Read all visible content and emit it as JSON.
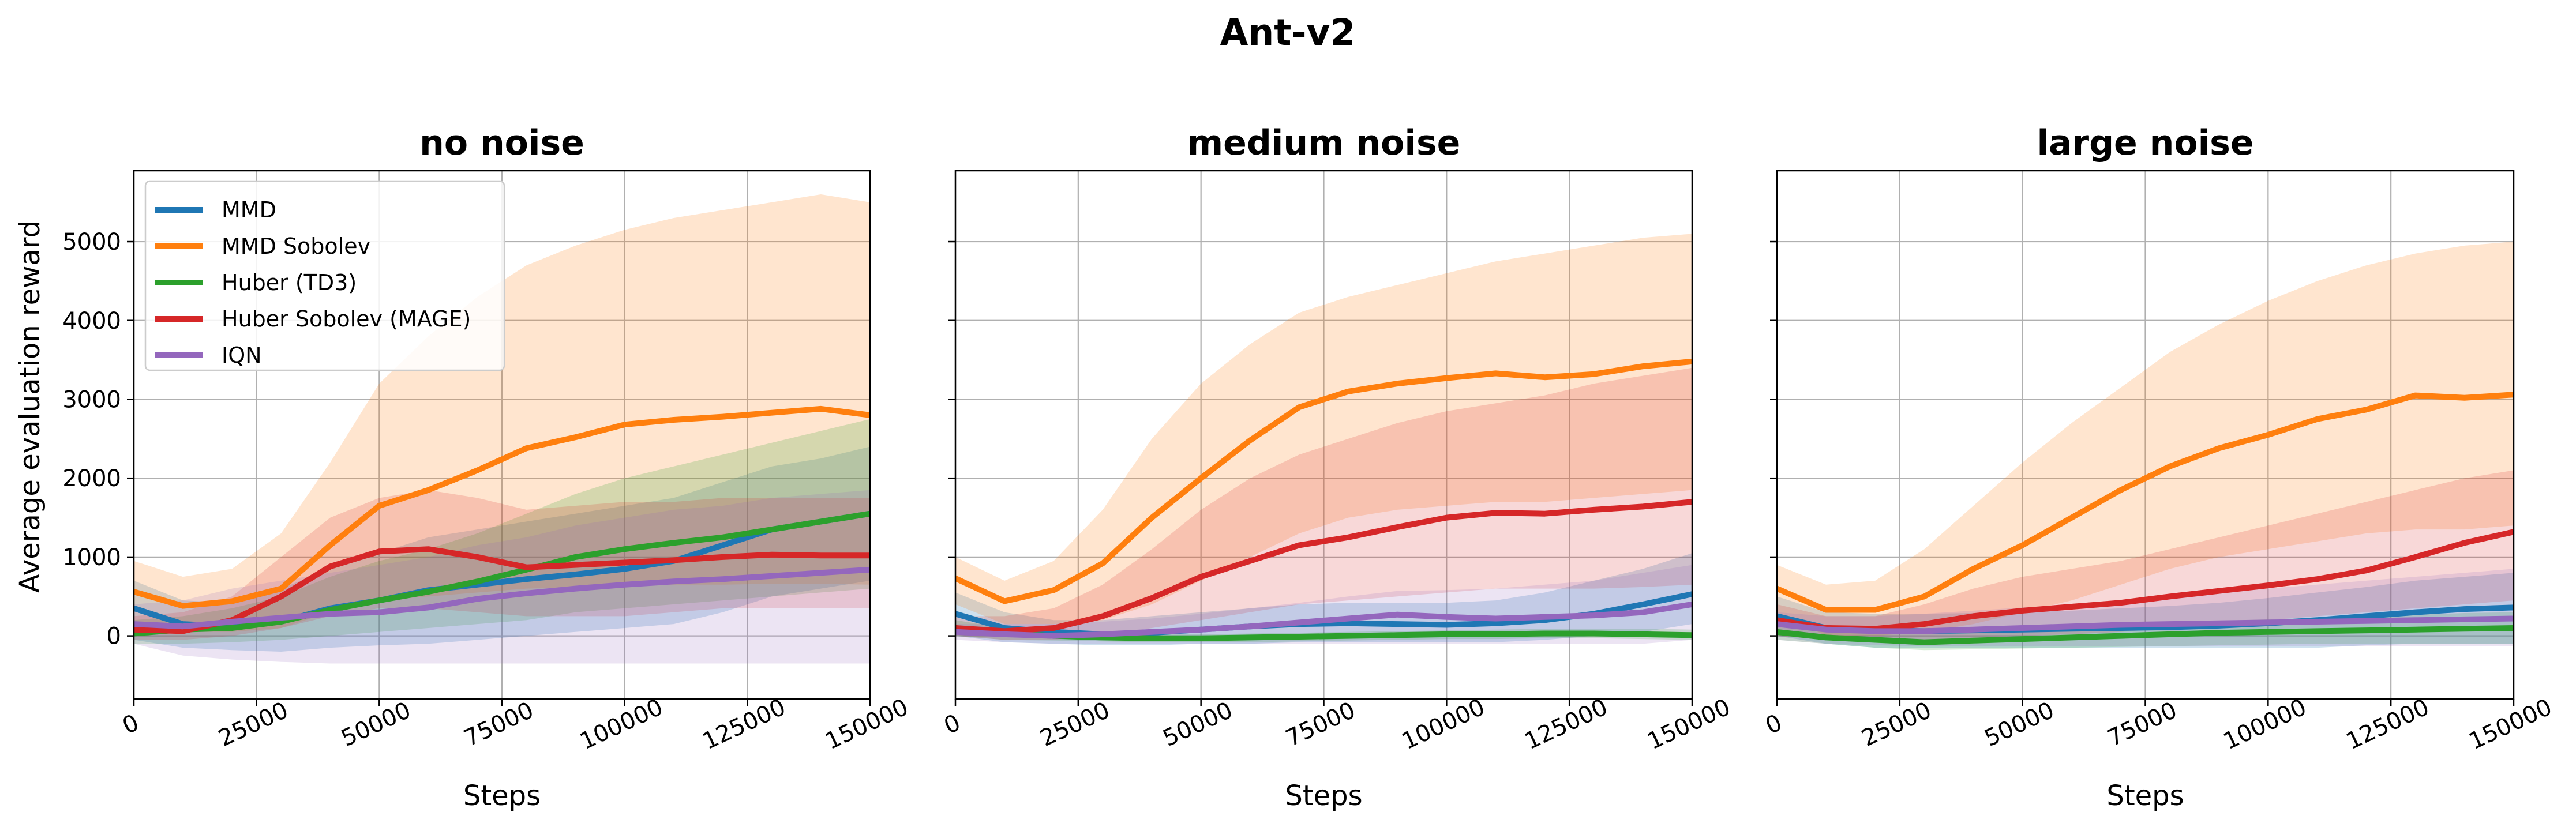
{
  "figure": {
    "suptitle": "Ant-v2",
    "ylabel": "Average evaluation reward",
    "xlabel": "Steps"
  },
  "colors": {
    "MMD": "#1f77b4",
    "MMD Sobolev": "#ff7f0e",
    "Huber (TD3)": "#2ca02c",
    "Huber Sobolev (MAGE)": "#d62728",
    "IQN": "#9467bd",
    "grid": "#b0b0b0"
  },
  "legend": {
    "placement": "upper-left of first panel",
    "entries": [
      "MMD",
      "MMD Sobolev",
      "Huber (TD3)",
      "Huber Sobolev (MAGE)",
      "IQN"
    ]
  },
  "chart_data": [
    {
      "type": "line",
      "title": "no noise",
      "xlabel": "Steps",
      "ylabel": "Average evaluation reward",
      "xlim": [
        0,
        150000
      ],
      "ylim": [
        -800,
        5900
      ],
      "xticks": [
        "0",
        "25000",
        "50000",
        "75000",
        "100000",
        "125000",
        "150000"
      ],
      "yticks": [
        "0",
        "1000",
        "2000",
        "3000",
        "4000",
        "5000"
      ],
      "grid": true,
      "shaded_band": "spread around each mean line",
      "x": [
        0,
        10000,
        20000,
        30000,
        40000,
        50000,
        60000,
        70000,
        80000,
        90000,
        100000,
        110000,
        120000,
        130000,
        140000,
        150000
      ],
      "series": [
        {
          "name": "MMD",
          "values": [
            350,
            150,
            120,
            180,
            350,
            450,
            580,
            650,
            720,
            780,
            850,
            950,
            1150,
            1350,
            1450,
            1550
          ],
          "lower": [
            -50,
            -150,
            -180,
            -200,
            -150,
            -120,
            -100,
            -50,
            0,
            50,
            100,
            150,
            300,
            500,
            600,
            700
          ],
          "upper": [
            700,
            450,
            420,
            600,
            850,
            1050,
            1250,
            1350,
            1450,
            1550,
            1650,
            1750,
            1950,
            2150,
            2250,
            2400
          ]
        },
        {
          "name": "MMD Sobolev",
          "values": [
            560,
            380,
            440,
            600,
            1150,
            1650,
            1850,
            2100,
            2380,
            2520,
            2680,
            2740,
            2780,
            2830,
            2880,
            2800
          ],
          "lower": [
            150,
            50,
            50,
            100,
            300,
            450,
            500,
            550,
            600,
            620,
            640,
            650,
            650,
            660,
            660,
            650
          ],
          "upper": [
            950,
            750,
            850,
            1300,
            2200,
            3200,
            3800,
            4300,
            4700,
            4950,
            5150,
            5300,
            5400,
            5500,
            5600,
            5500
          ]
        },
        {
          "name": "Huber (TD3)",
          "values": [
            30,
            80,
            100,
            180,
            330,
            450,
            560,
            690,
            840,
            1000,
            1100,
            1180,
            1250,
            1350,
            1450,
            1550
          ],
          "lower": [
            -100,
            -100,
            -80,
            -50,
            0,
            50,
            100,
            150,
            200,
            300,
            350,
            400,
            450,
            500,
            550,
            600
          ],
          "upper": [
            200,
            250,
            350,
            500,
            750,
            950,
            1100,
            1300,
            1550,
            1800,
            2000,
            2150,
            2300,
            2450,
            2600,
            2750
          ]
        },
        {
          "name": "Huber Sobolev (MAGE)",
          "values": [
            80,
            60,
            200,
            500,
            880,
            1070,
            1100,
            1000,
            870,
            900,
            930,
            960,
            1000,
            1030,
            1020,
            1020
          ],
          "lower": [
            -50,
            -50,
            0,
            100,
            250,
            350,
            350,
            300,
            250,
            250,
            250,
            300,
            350,
            350,
            350,
            350
          ],
          "upper": [
            250,
            300,
            500,
            1000,
            1500,
            1750,
            1850,
            1750,
            1600,
            1650,
            1700,
            1700,
            1750,
            1750,
            1750,
            1750
          ]
        },
        {
          "name": "IQN",
          "values": [
            150,
            120,
            180,
            230,
            280,
            300,
            360,
            470,
            540,
            600,
            650,
            690,
            720,
            760,
            800,
            840
          ],
          "lower": [
            -100,
            -250,
            -300,
            -330,
            -350,
            -350,
            -350,
            -350,
            -350,
            -350,
            -350,
            -350,
            -350,
            -350,
            -350,
            -350
          ],
          "upper": [
            400,
            450,
            600,
            700,
            800,
            900,
            1000,
            1150,
            1250,
            1400,
            1500,
            1600,
            1650,
            1750,
            1800,
            1850
          ]
        }
      ]
    },
    {
      "type": "line",
      "title": "medium noise",
      "xlabel": "Steps",
      "xlim": [
        0,
        150000
      ],
      "ylim": [
        -800,
        5900
      ],
      "xticks": [
        "0",
        "25000",
        "50000",
        "75000",
        "100000",
        "125000",
        "150000"
      ],
      "grid": true,
      "x": [
        0,
        10000,
        20000,
        30000,
        40000,
        50000,
        60000,
        70000,
        80000,
        90000,
        100000,
        110000,
        120000,
        130000,
        140000,
        150000
      ],
      "series": [
        {
          "name": "MMD",
          "values": [
            280,
            100,
            50,
            20,
            40,
            80,
            120,
            150,
            160,
            150,
            140,
            160,
            200,
            280,
            400,
            530
          ],
          "lower": [
            0,
            -80,
            -100,
            -120,
            -120,
            -100,
            -100,
            -80,
            -80,
            -80,
            -80,
            -80,
            -50,
            0,
            50,
            150
          ],
          "upper": [
            550,
            300,
            200,
            200,
            250,
            300,
            350,
            400,
            420,
            420,
            420,
            450,
            550,
            700,
            850,
            1050
          ]
        },
        {
          "name": "MMD Sobolev",
          "values": [
            730,
            440,
            580,
            920,
            1500,
            2000,
            2480,
            2900,
            3100,
            3200,
            3270,
            3330,
            3280,
            3320,
            3420,
            3480
          ],
          "lower": [
            400,
            150,
            150,
            200,
            400,
            700,
            1000,
            1300,
            1500,
            1600,
            1650,
            1700,
            1700,
            1750,
            1800,
            1850
          ],
          "upper": [
            1000,
            700,
            950,
            1600,
            2500,
            3200,
            3700,
            4100,
            4300,
            4450,
            4600,
            4750,
            4850,
            4950,
            5050,
            5100
          ]
        },
        {
          "name": "Huber (TD3)",
          "values": [
            100,
            30,
            0,
            -20,
            -30,
            -30,
            -20,
            -10,
            0,
            10,
            20,
            20,
            30,
            30,
            20,
            10
          ],
          "lower": [
            0,
            -50,
            -60,
            -70,
            -80,
            -80,
            -80,
            -70,
            -60,
            -50,
            -40,
            -40,
            -30,
            -30,
            -40,
            -50
          ],
          "upper": [
            200,
            100,
            60,
            30,
            20,
            20,
            30,
            40,
            50,
            60,
            70,
            80,
            90,
            90,
            90,
            80
          ]
        },
        {
          "name": "Huber Sobolev (MAGE)",
          "values": [
            100,
            60,
            100,
            250,
            480,
            750,
            950,
            1150,
            1250,
            1380,
            1500,
            1560,
            1550,
            1600,
            1640,
            1700
          ],
          "lower": [
            0,
            -50,
            -50,
            0,
            100,
            200,
            300,
            400,
            450,
            500,
            550,
            600,
            600,
            600,
            620,
            650
          ],
          "upper": [
            250,
            250,
            350,
            650,
            1100,
            1600,
            2000,
            2300,
            2500,
            2700,
            2850,
            2950,
            3050,
            3200,
            3300,
            3400
          ]
        },
        {
          "name": "IQN",
          "values": [
            50,
            20,
            0,
            20,
            50,
            80,
            120,
            170,
            220,
            270,
            240,
            220,
            240,
            260,
            300,
            400
          ],
          "lower": [
            -50,
            -80,
            -100,
            -100,
            -100,
            -100,
            -100,
            -100,
            -100,
            -100,
            -100,
            -100,
            -100,
            -100,
            -100,
            -50
          ],
          "upper": [
            150,
            150,
            150,
            180,
            220,
            280,
            350,
            420,
            500,
            570,
            580,
            600,
            650,
            700,
            800,
            900
          ]
        }
      ]
    },
    {
      "type": "line",
      "title": "large noise",
      "xlabel": "Steps",
      "xlim": [
        0,
        150000
      ],
      "ylim": [
        -800,
        5900
      ],
      "xticks": [
        "0",
        "25000",
        "50000",
        "75000",
        "100000",
        "125000",
        "150000"
      ],
      "grid": true,
      "x": [
        0,
        10000,
        20000,
        30000,
        40000,
        50000,
        60000,
        70000,
        80000,
        90000,
        100000,
        110000,
        120000,
        130000,
        140000,
        150000
      ],
      "series": [
        {
          "name": "MMD",
          "values": [
            250,
            100,
            70,
            60,
            70,
            80,
            90,
            100,
            110,
            130,
            160,
            200,
            250,
            300,
            340,
            360
          ],
          "lower": [
            0,
            -100,
            -150,
            -150,
            -150,
            -150,
            -150,
            -150,
            -150,
            -150,
            -150,
            -150,
            -120,
            -100,
            -100,
            -100
          ],
          "upper": [
            500,
            300,
            280,
            280,
            290,
            300,
            320,
            350,
            380,
            420,
            480,
            550,
            620,
            700,
            750,
            800
          ]
        },
        {
          "name": "MMD Sobolev",
          "values": [
            600,
            330,
            330,
            500,
            850,
            1150,
            1500,
            1850,
            2150,
            2380,
            2550,
            2750,
            2870,
            3050,
            3020,
            3060
          ],
          "lower": [
            300,
            0,
            0,
            50,
            150,
            300,
            450,
            650,
            850,
            1000,
            1100,
            1200,
            1300,
            1350,
            1350,
            1400
          ],
          "upper": [
            900,
            650,
            700,
            1100,
            1650,
            2200,
            2700,
            3150,
            3600,
            3950,
            4250,
            4500,
            4700,
            4850,
            4950,
            5000
          ]
        },
        {
          "name": "Huber (TD3)",
          "values": [
            50,
            -20,
            -50,
            -80,
            -60,
            -40,
            -20,
            0,
            20,
            40,
            50,
            60,
            70,
            80,
            90,
            100
          ],
          "lower": [
            -50,
            -100,
            -150,
            -180,
            -170,
            -160,
            -150,
            -140,
            -130,
            -120,
            -110,
            -100,
            -100,
            -100,
            -100,
            -100
          ],
          "upper": [
            150,
            60,
            50,
            20,
            50,
            80,
            100,
            130,
            160,
            190,
            210,
            230,
            250,
            270,
            290,
            300
          ]
        },
        {
          "name": "Huber Sobolev (MAGE)",
          "values": [
            200,
            100,
            90,
            150,
            250,
            320,
            370,
            420,
            500,
            570,
            640,
            720,
            830,
            1000,
            1180,
            1320
          ],
          "lower": [
            0,
            -50,
            -50,
            -50,
            -30,
            0,
            20,
            50,
            100,
            150,
            200,
            250,
            300,
            350,
            400,
            450
          ],
          "upper": [
            400,
            250,
            250,
            400,
            600,
            750,
            850,
            950,
            1100,
            1250,
            1400,
            1550,
            1700,
            1850,
            2000,
            2100
          ]
        },
        {
          "name": "IQN",
          "values": [
            150,
            80,
            60,
            60,
            80,
            100,
            120,
            140,
            150,
            160,
            170,
            180,
            190,
            200,
            210,
            220
          ],
          "lower": [
            -50,
            -100,
            -120,
            -130,
            -130,
            -130,
            -130,
            -130,
            -130,
            -130,
            -130,
            -130,
            -130,
            -130,
            -130,
            -130
          ],
          "upper": [
            300,
            250,
            250,
            280,
            320,
            360,
            400,
            450,
            500,
            550,
            600,
            650,
            700,
            750,
            800,
            850
          ]
        }
      ]
    }
  ]
}
